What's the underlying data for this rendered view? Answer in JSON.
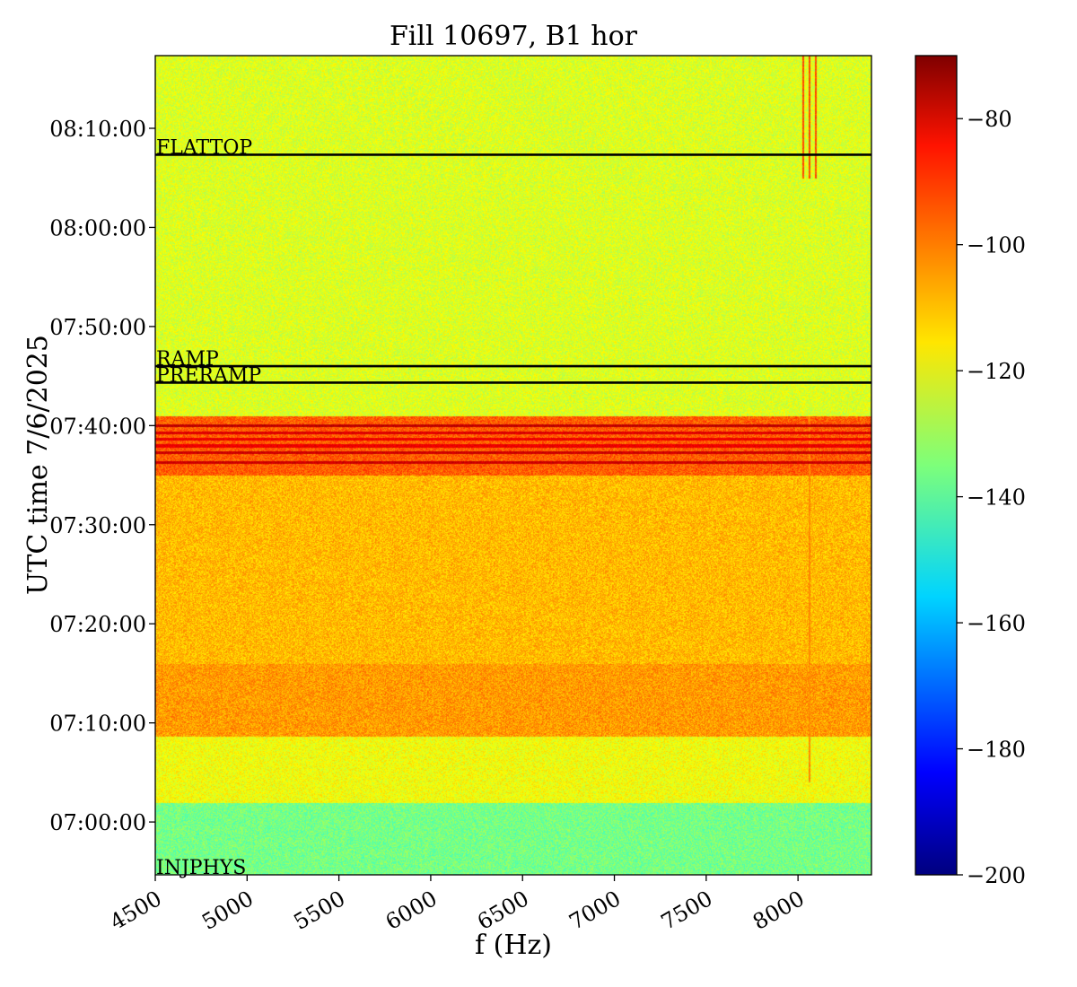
{
  "chart_data": {
    "type": "heatmap",
    "title": "Fill 10697, B1 hor",
    "xlabel": "f (Hz)",
    "ylabel": "UTC time 7/6/2025",
    "xlim": [
      4500,
      8400
    ],
    "ylim": [
      "06:54:40",
      "08:17:20"
    ],
    "x_ticks": [
      4500,
      5000,
      5500,
      6000,
      6500,
      7000,
      7500,
      8000
    ],
    "x_tick_labels": [
      "4500",
      "5000",
      "5500",
      "6000",
      "6500",
      "7000",
      "7500",
      "8000"
    ],
    "y_ticks": [
      "07:00:00",
      "07:10:00",
      "07:20:00",
      "07:30:00",
      "07:40:00",
      "07:50:00",
      "08:00:00",
      "08:10:00"
    ],
    "colorbar": {
      "colormap": "jet",
      "min": -200,
      "max": -70,
      "ticks": [
        -80,
        -100,
        -120,
        -140,
        -160,
        -180,
        -200
      ],
      "tick_labels": [
        "−80",
        "−100",
        "−120",
        "−140",
        "−160",
        "−180",
        "−200"
      ]
    },
    "markers": [
      {
        "label": "FLATTOP",
        "time": "08:07:20",
        "line": true
      },
      {
        "label": "RAMP",
        "time": "07:46:00",
        "line": true
      },
      {
        "label": "PRERAMP",
        "time": "07:44:20",
        "line": true
      },
      {
        "label": "INJPHYS",
        "time": "06:54:40",
        "line": false
      }
    ],
    "time_bands": [
      {
        "from": "06:54:40",
        "to": "07:02:00",
        "level_db": -136
      },
      {
        "from": "07:02:00",
        "to": "07:08:40",
        "level_db": -120
      },
      {
        "from": "07:08:40",
        "to": "07:16:00",
        "level_db": -106
      },
      {
        "from": "07:16:00",
        "to": "07:35:00",
        "level_db": -110
      },
      {
        "from": "07:35:00",
        "to": "07:41:00",
        "level_db": -98
      },
      {
        "from": "07:41:00",
        "to": "08:17:20",
        "level_db": -123
      }
    ],
    "thin_lines": [
      {
        "time": "07:40:00",
        "level_db": -78
      },
      {
        "time": "07:39:20",
        "level_db": -82
      },
      {
        "time": "07:38:40",
        "level_db": -84
      },
      {
        "time": "07:38:00",
        "level_db": -84
      },
      {
        "time": "07:37:20",
        "level_db": -80
      },
      {
        "time": "07:36:20",
        "level_db": -80
      }
    ],
    "vertical_features": [
      {
        "f_from": 8000,
        "f_to": 8120,
        "time_from": "08:05:00",
        "time_to": "08:17:20",
        "level_db": -96
      },
      {
        "f_from": 8050,
        "f_to": 8070,
        "time_from": "07:04:00",
        "time_to": "07:41:00",
        "level_db": -104
      }
    ]
  }
}
